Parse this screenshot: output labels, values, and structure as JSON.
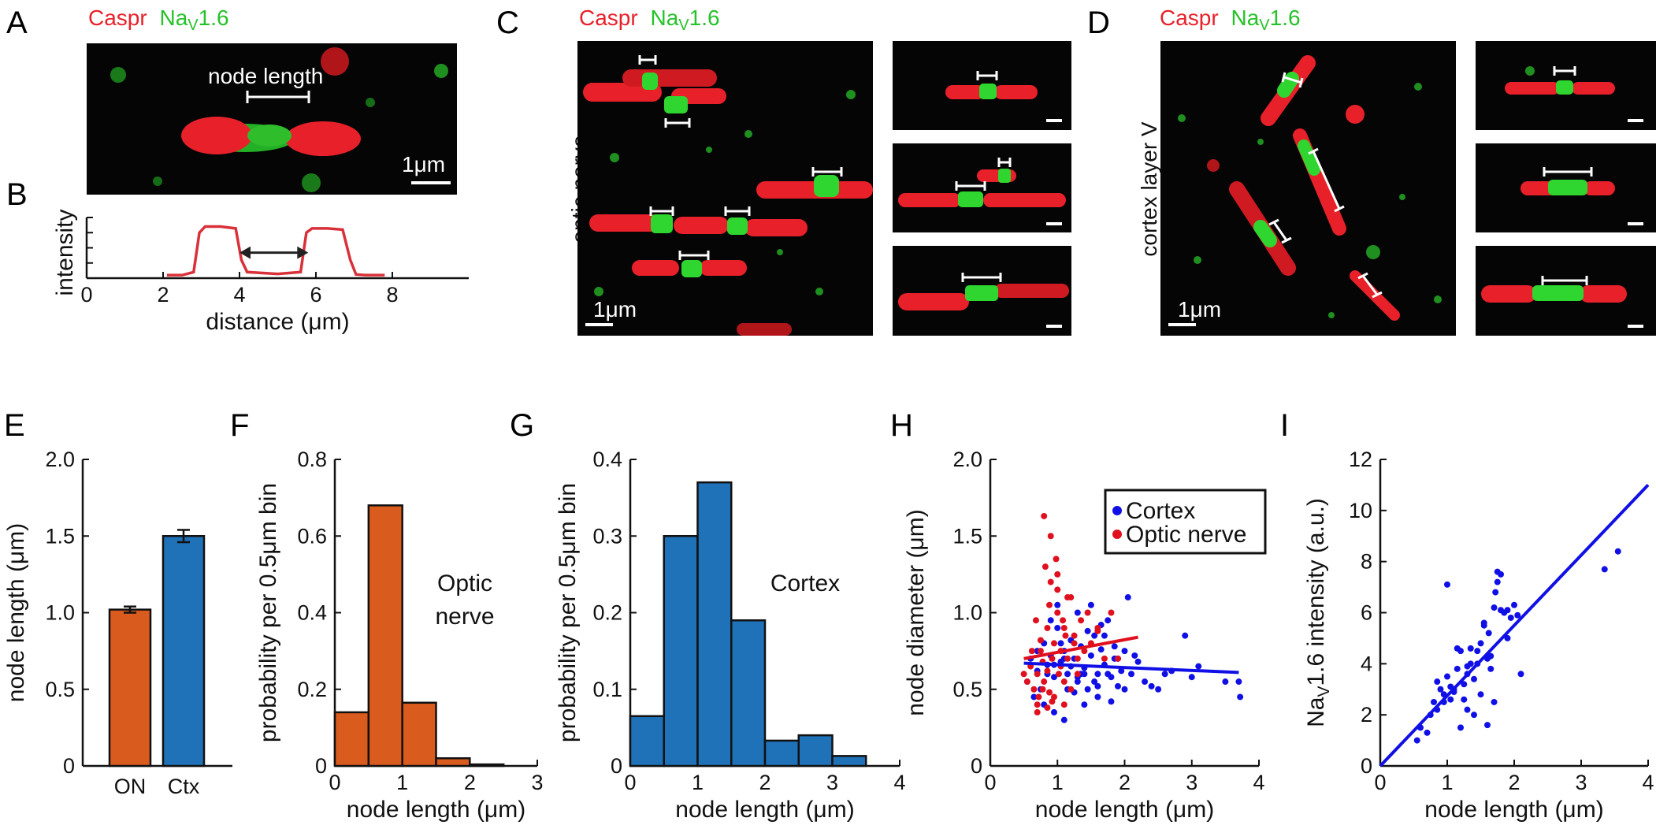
{
  "colors": {
    "caspr": "#e8202a",
    "nav": "#27c22a",
    "on_bar": "#d95b1d",
    "ctx_bar": "#1f72b8",
    "cortex_pts": "#1010e6",
    "optic_pts": "#e0101e",
    "profile": "#d9313a",
    "micro_bg": "#050505"
  },
  "panels": {
    "A": {
      "letter": "A",
      "legend": {
        "caspr": "Caspr",
        "nav_main": "Na",
        "nav_sub": "V",
        "nav_suffix": "1.6"
      },
      "label": "node length",
      "scalebar": "1μm"
    },
    "B": {
      "letter": "B",
      "ylabel": "intensity",
      "xlabel": "distance (μm)",
      "xticks": [
        "0",
        "2",
        "4",
        "6",
        "8"
      ]
    },
    "C": {
      "letter": "C",
      "legend": {
        "caspr": "Caspr",
        "nav_main": "Na",
        "nav_sub": "V",
        "nav_suffix": "1.6"
      },
      "side_label": "optic nerve",
      "scalebar": "1μm"
    },
    "D": {
      "letter": "D",
      "legend": {
        "caspr": "Caspr",
        "nav_main": "Na",
        "nav_sub": "V",
        "nav_suffix": "1.6"
      },
      "side_label": "cortex layer V",
      "scalebar": "1μm"
    },
    "E": {
      "letter": "E"
    },
    "F": {
      "letter": "F"
    },
    "G": {
      "letter": "G"
    },
    "H": {
      "letter": "H"
    },
    "I": {
      "letter": "I"
    }
  },
  "chart_data": [
    {
      "id": "B",
      "type": "line",
      "title": "",
      "xlabel": "distance (μm)",
      "ylabel": "intensity",
      "xlim": [
        0,
        10
      ],
      "ylim": [
        0,
        1
      ],
      "series": [
        {
          "name": "profile",
          "x": [
            2.1,
            2.5,
            2.8,
            2.95,
            3.1,
            3.5,
            3.9,
            4.05,
            4.2,
            5.0,
            5.6,
            5.75,
            5.9,
            6.3,
            6.7,
            6.9,
            7.05,
            7.3,
            7.8
          ],
          "y": [
            0.05,
            0.05,
            0.1,
            0.75,
            0.85,
            0.85,
            0.82,
            0.3,
            0.1,
            0.07,
            0.1,
            0.75,
            0.82,
            0.82,
            0.8,
            0.3,
            0.06,
            0.05,
            0.05
          ]
        }
      ],
      "annotation": {
        "type": "double-arrow",
        "from": 4.0,
        "to": 5.8,
        "y": 0.42
      }
    },
    {
      "id": "E",
      "type": "bar",
      "categories": [
        "ON",
        "Ctx"
      ],
      "values": [
        1.02,
        1.5
      ],
      "errors": [
        0.02,
        0.04
      ],
      "ylabel": "node length (μm)",
      "ylim": [
        0,
        2.0
      ],
      "yticks": [
        "0",
        "0.5",
        "1.0",
        "1.5",
        "2.0"
      ]
    },
    {
      "id": "F",
      "type": "bar",
      "bins": [
        0.25,
        0.75,
        1.25,
        1.75,
        2.25,
        2.75
      ],
      "values": [
        0.14,
        0.68,
        0.165,
        0.02,
        0.004,
        0.0
      ],
      "bin_width": 0.5,
      "xlabel": "node length (μm)",
      "ylabel": "probability per 0.5μm bin",
      "annotation": [
        "Optic",
        "nerve"
      ],
      "xlim": [
        0,
        3
      ],
      "ylim": [
        0,
        0.8
      ],
      "xticks": [
        "0",
        "1",
        "2",
        "3"
      ],
      "yticks": [
        "0",
        "0.2",
        "0.4",
        "0.6",
        "0.8"
      ]
    },
    {
      "id": "G",
      "type": "bar",
      "bins": [
        0.25,
        0.75,
        1.25,
        1.75,
        2.25,
        2.75,
        3.25,
        3.75
      ],
      "values": [
        0.065,
        0.3,
        0.37,
        0.19,
        0.033,
        0.04,
        0.013,
        0.0
      ],
      "bin_width": 0.5,
      "xlabel": "node length (μm)",
      "ylabel": "probability per 0.5μm bin",
      "annotation": "Cortex",
      "xlim": [
        0,
        4
      ],
      "ylim": [
        0,
        0.4
      ],
      "xticks": [
        "0",
        "1",
        "2",
        "3",
        "4"
      ],
      "yticks": [
        "0",
        "0.1",
        "0.2",
        "0.3",
        "0.4"
      ]
    },
    {
      "id": "H",
      "type": "scatter",
      "xlabel": "node length (μm)",
      "ylabel": "node diameter (μm)",
      "xlim": [
        0,
        4
      ],
      "ylim": [
        0,
        2.0
      ],
      "xticks": [
        "0",
        "1",
        "2",
        "3",
        "4"
      ],
      "yticks": [
        "0",
        "0.5",
        "1.0",
        "1.5",
        "2.0"
      ],
      "legend": [
        "Cortex",
        "Optic nerve"
      ],
      "legend_position": "top-right",
      "series": [
        {
          "name": "Cortex",
          "x": [
            0.55,
            0.6,
            0.7,
            0.75,
            0.8,
            0.85,
            0.9,
            0.95,
            1.0,
            1.05,
            1.1,
            1.15,
            1.2,
            1.25,
            1.3,
            1.35,
            1.4,
            1.45,
            1.5,
            1.55,
            1.6,
            1.65,
            1.7,
            1.75,
            1.8,
            1.85,
            1.9,
            1.95,
            2.0,
            2.1,
            2.2,
            2.3,
            2.5,
            2.7,
            2.9,
            3.0,
            3.1,
            3.5,
            3.7,
            3.72,
            0.65,
            0.8,
            0.95,
            1.1,
            1.25,
            1.4,
            1.6,
            1.8,
            2.0,
            1.5,
            1.3,
            1.0,
            0.9,
            1.7,
            2.05,
            2.4,
            1.15,
            1.35,
            1.55,
            1.75,
            0.7,
            1.05,
            1.45,
            1.65,
            1.85,
            2.15,
            0.85,
            1.2,
            1.9,
            1.1,
            1.3,
            0.95,
            2.6,
            1.6,
            1.4
          ],
          "y": [
            0.55,
            0.7,
            0.62,
            0.5,
            0.8,
            0.66,
            0.72,
            0.58,
            0.9,
            0.68,
            0.75,
            0.6,
            0.82,
            0.7,
            0.55,
            0.78,
            0.64,
            0.5,
            0.72,
            0.85,
            0.6,
            0.76,
            0.66,
            0.95,
            0.58,
            0.7,
            0.52,
            0.62,
            0.75,
            0.6,
            0.68,
            0.55,
            0.5,
            0.62,
            0.85,
            0.58,
            0.65,
            0.55,
            0.55,
            0.45,
            0.45,
            0.4,
            0.35,
            0.3,
            0.48,
            0.4,
            0.45,
            0.42,
            0.5,
            1.05,
            1.0,
            1.05,
            0.95,
            0.85,
            1.1,
            0.52,
            0.5,
            0.6,
            0.55,
            0.6,
            0.75,
            0.8,
            0.88,
            0.92,
            0.78,
            0.72,
            0.6,
            0.65,
            0.7,
            0.7,
            0.58,
            0.66,
            0.6,
            0.52,
            0.6
          ]
        },
        {
          "name": "Optic nerve",
          "x": [
            0.7,
            0.75,
            0.8,
            0.85,
            0.9,
            0.95,
            1.0,
            1.05,
            1.1,
            1.15,
            1.2,
            1.25,
            1.3,
            1.35,
            1.4,
            1.5,
            1.6,
            1.7,
            1.8,
            0.65,
            0.72,
            0.78,
            0.82,
            0.88,
            0.92,
            0.98,
            1.02,
            1.08,
            1.12,
            0.6,
            0.55,
            0.7,
            0.85,
            0.9,
            1.0,
            1.1,
            1.2,
            0.8,
            0.95,
            1.05,
            0.5,
            0.75,
            0.68,
            0.88,
            1.15,
            1.3,
            1.45,
            0.62,
            0.78,
            0.92,
            1.0,
            1.25,
            0.7,
            0.85,
            1.1,
            1.6,
            1.9
          ],
          "y": [
            0.6,
            0.75,
            1.63,
            0.9,
            1.2,
            0.8,
            1.0,
            0.65,
            0.55,
            0.7,
            1.1,
            0.85,
            0.6,
            0.95,
            0.75,
            0.8,
            0.9,
            0.7,
            1.0,
            0.5,
            0.45,
            0.68,
            1.3,
            1.05,
            0.7,
            1.35,
            0.6,
            0.95,
            0.85,
            0.65,
            0.55,
            0.4,
            0.38,
            1.5,
            1.25,
            0.9,
            0.5,
            0.55,
            0.45,
            0.75,
            0.6,
            0.82,
            0.95,
            0.48,
            1.1,
            0.7,
            1.0,
            0.75,
            0.5,
            0.42,
            1.15,
            0.8,
            0.35,
            0.62,
            0.4,
            0.88,
            0.7
          ]
        }
      ],
      "fits": [
        {
          "name": "Cortex",
          "x": [
            0.5,
            3.7
          ],
          "y": [
            0.67,
            0.61
          ]
        },
        {
          "name": "Optic nerve",
          "x": [
            0.5,
            2.2
          ],
          "y": [
            0.7,
            0.84
          ]
        }
      ]
    },
    {
      "id": "I",
      "type": "scatter",
      "xlabel": "node length (μm)",
      "ylabel_main": "Na",
      "ylabel_sub": "V",
      "ylabel_suffix": "1.6 intensity (a.u.)",
      "xlim": [
        0,
        4
      ],
      "ylim": [
        0,
        12
      ],
      "xticks": [
        "0",
        "1",
        "2",
        "3",
        "4"
      ],
      "yticks": [
        "0",
        "2",
        "4",
        "6",
        "8",
        "10",
        "12"
      ],
      "series": [
        {
          "name": "Cortex",
          "x": [
            0.55,
            0.6,
            0.7,
            0.75,
            0.8,
            0.85,
            0.9,
            0.95,
            1.0,
            1.05,
            1.1,
            1.15,
            1.2,
            1.25,
            1.3,
            1.35,
            1.4,
            1.45,
            1.5,
            1.55,
            1.6,
            1.65,
            1.7,
            1.75,
            1.8,
            1.85,
            1.9,
            1.95,
            2.0,
            2.1,
            1.0,
            1.2,
            1.3,
            1.5,
            1.6,
            1.7,
            1.75,
            1.8,
            1.4,
            1.25,
            1.15,
            0.95,
            0.85,
            1.65,
            1.55,
            1.35,
            1.45,
            1.05,
            3.35,
            3.55,
            1.72,
            1.62,
            1.9,
            2.05,
            1.3,
            1.1
          ],
          "y": [
            1.0,
            1.5,
            1.3,
            2.0,
            2.5,
            2.2,
            3.0,
            2.8,
            3.5,
            2.6,
            3.0,
            3.8,
            4.5,
            3.2,
            3.6,
            4.0,
            2.0,
            4.5,
            4.8,
            5.5,
            4.2,
            3.8,
            6.2,
            7.2,
            7.5,
            6.0,
            5.0,
            5.8,
            6.3,
            3.6,
            7.1,
            1.5,
            2.2,
            2.8,
            1.6,
            2.5,
            7.6,
            6.1,
            3.4,
            2.6,
            4.6,
            2.5,
            3.3,
            4.3,
            5.6,
            4.6,
            4.0,
            3.1,
            7.7,
            8.4,
            6.8,
            5.2,
            6.1,
            5.9,
            3.9,
            2.9
          ]
        }
      ],
      "fit": {
        "x": [
          0,
          4
        ],
        "y": [
          0,
          11
        ]
      }
    }
  ]
}
